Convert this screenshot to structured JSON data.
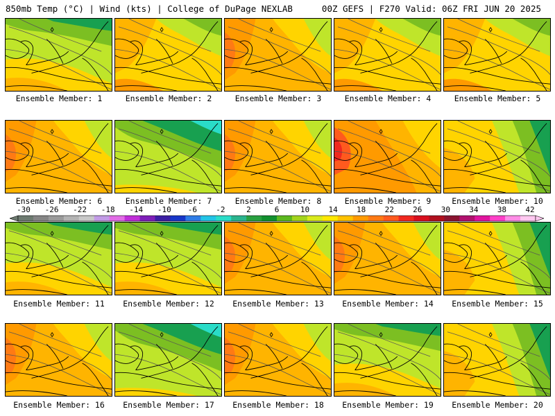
{
  "header": {
    "left": "850mb Temp (°C) | Wind (kts) | College of DuPage NEXLAB",
    "right": "00Z GEFS | F270 Valid: 06Z FRI JUN 20 2025"
  },
  "members": [
    {
      "label": "Ensemble Member: 1",
      "scheme": "cool"
    },
    {
      "label": "Ensemble Member: 2",
      "scheme": "mild"
    },
    {
      "label": "Ensemble Member: 3",
      "scheme": "warm"
    },
    {
      "label": "Ensemble Member: 4",
      "scheme": "mild"
    },
    {
      "label": "Ensemble Member: 5",
      "scheme": "mild"
    },
    {
      "label": "Ensemble Member: 6",
      "scheme": "warm"
    },
    {
      "label": "Ensemble Member: 7",
      "scheme": "cold"
    },
    {
      "label": "Ensemble Member: 8",
      "scheme": "warm"
    },
    {
      "label": "Ensemble Member: 9",
      "scheme": "hot"
    },
    {
      "label": "Ensemble Member: 10",
      "scheme": "coolE"
    },
    {
      "label": "Ensemble Member: 11",
      "scheme": "cool"
    },
    {
      "label": "Ensemble Member: 12",
      "scheme": "cool"
    },
    {
      "label": "Ensemble Member: 13",
      "scheme": "warm"
    },
    {
      "label": "Ensemble Member: 14",
      "scheme": "warm"
    },
    {
      "label": "Ensemble Member: 15",
      "scheme": "coolE"
    },
    {
      "label": "Ensemble Member: 16",
      "scheme": "warm"
    },
    {
      "label": "Ensemble Member: 17",
      "scheme": "cold"
    },
    {
      "label": "Ensemble Member: 18",
      "scheme": "warm"
    },
    {
      "label": "Ensemble Member: 19",
      "scheme": "cool"
    },
    {
      "label": "Ensemble Member: 20",
      "scheme": "coolE"
    }
  ],
  "colorbar": {
    "ticks": [
      "-30",
      "-26",
      "-22",
      "-18",
      "-14",
      "-10",
      "-6",
      "-2",
      "2",
      "6",
      "10",
      "14",
      "18",
      "22",
      "26",
      "30",
      "34",
      "38",
      "42"
    ],
    "colors": [
      "#6d7a70",
      "#858585",
      "#9a9a9a",
      "#b3b3b3",
      "#c8c8c8",
      "#c29be6",
      "#e16ce6",
      "#c02dd8",
      "#7d1eb8",
      "#3b1ea3",
      "#1736c8",
      "#2e7ce6",
      "#22c4e6",
      "#2adcc8",
      "#2ab48e",
      "#28a040",
      "#118f2e",
      "#5cb81e",
      "#a3d41c",
      "#d9ea1c",
      "#ffe800",
      "#ffc200",
      "#ff9a00",
      "#ff7a14",
      "#ff5a1e",
      "#f02820",
      "#d80f1e",
      "#b0101e",
      "#8a1430",
      "#b0106e",
      "#e0149e",
      "#ff40c8",
      "#ff8ce6",
      "#ffc8f0"
    ]
  }
}
